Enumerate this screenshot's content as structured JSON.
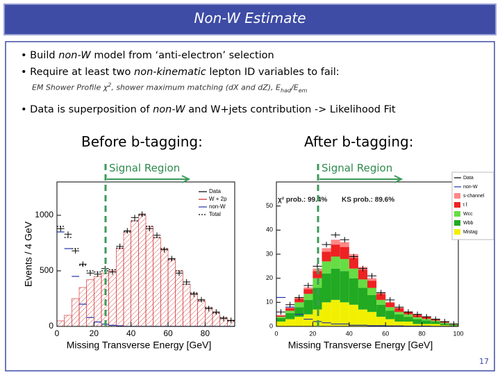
{
  "header": {
    "title": "Non-W Estimate"
  },
  "bullets": [
    [
      "Build ",
      "non-W",
      " model from ‘anti-electron’ selection"
    ],
    [
      "Require at least two ",
      "non-kinematic",
      " lepton ID variables to fail:"
    ],
    [
      "Data is superposition of ",
      "non-W",
      " and W+jets contribution -> Likelihood Fit"
    ]
  ],
  "sub_bullet": [
    "EM Shower Profile ",
    "χ",
    "2",
    ", shower maximum matching (dX and dZ), E",
    "had",
    "/E",
    "em"
  ],
  "panels": [
    {
      "heading": "Before b-tagging:",
      "region": "Signal Region"
    },
    {
      "heading": "After b-tagging:",
      "region": "Signal Region"
    }
  ],
  "page_number": "17",
  "chart_data": [
    {
      "type": "histogram",
      "xlabel": "Missing Transverse Energy [GeV]",
      "ylabel": "Events / 4 GeV",
      "bins": [
        0,
        4,
        8,
        12,
        16,
        20,
        24,
        28,
        32,
        36,
        40,
        44,
        48,
        52,
        56,
        60,
        64,
        68,
        72,
        76,
        80,
        84,
        88,
        92,
        96
      ],
      "xlim": [
        0,
        96
      ],
      "xticks": [
        0,
        20,
        40,
        60,
        80
      ],
      "ylim": [
        0,
        1300
      ],
      "yticks": [
        0,
        500,
        1000
      ],
      "legend": "upper right",
      "series": [
        {
          "name": "Data",
          "color": "#000000",
          "mark": "points",
          "values": [
            880,
            830,
            680,
            560,
            480,
            470,
            520,
            490,
            720,
            860,
            980,
            1010,
            880,
            820,
            690,
            610,
            480,
            400,
            290,
            240,
            160,
            130,
            70,
            55
          ]
        },
        {
          "name": "W + 2p",
          "color": "#cc2222",
          "mark": "hatch",
          "values": [
            50,
            100,
            250,
            350,
            420,
            450,
            480,
            500,
            700,
            850,
            950,
            1000,
            900,
            800,
            700,
            600,
            500,
            380,
            300,
            230,
            170,
            120,
            80,
            50
          ]
        },
        {
          "name": "non-W",
          "color": "#2233aa",
          "mark": "step",
          "values": [
            850,
            700,
            450,
            200,
            80,
            40,
            20,
            10,
            5,
            0,
            0,
            0,
            0,
            0,
            0,
            0,
            0,
            0,
            0,
            0,
            0,
            0,
            0,
            0
          ]
        },
        {
          "name": "Total",
          "color": "#000000",
          "mark": "dotted",
          "values": [
            900,
            800,
            700,
            550,
            500,
            490,
            500,
            510,
            705,
            850,
            950,
            1000,
            900,
            800,
            700,
            600,
            500,
            380,
            300,
            230,
            170,
            120,
            80,
            50
          ]
        }
      ]
    },
    {
      "type": "histogram",
      "xlabel": "Missing Transverse Energy [GeV]",
      "bins": [
        0,
        5,
        10,
        15,
        20,
        25,
        30,
        35,
        40,
        45,
        50,
        55,
        60,
        65,
        70,
        75,
        80,
        85,
        90,
        95,
        100
      ],
      "xlim": [
        0,
        100
      ],
      "xticks": [
        0,
        20,
        40,
        60,
        80,
        100
      ],
      "ylim": [
        0,
        60
      ],
      "yticks": [
        0,
        10,
        20,
        30,
        40,
        50
      ],
      "legend": "outside right",
      "annotations": [
        "χ² prob.: 99.4%",
        "KS prob.: 89.6%"
      ],
      "series": [
        {
          "name": "Data",
          "color": "#000000",
          "mark": "points",
          "values": [
            6,
            9,
            12,
            17,
            25,
            34,
            38,
            36,
            29,
            24,
            21,
            14,
            11,
            8,
            6,
            5,
            4,
            3,
            2,
            1
          ]
        },
        {
          "name": "non-W",
          "color": "#2233aa",
          "mark": "step",
          "values": [
            12,
            8,
            5,
            3,
            2,
            1.5,
            1,
            1,
            0.5,
            0.5,
            0.3,
            0.3,
            0.2,
            0.2,
            0.1,
            0.1,
            0.1,
            0,
            0,
            0
          ]
        },
        {
          "name": "s-channel",
          "color": "#ff8888",
          "mark": "fill",
          "stack": true,
          "values": [
            0.2,
            0.3,
            0.5,
            0.7,
            1,
            1.5,
            2,
            2,
            1.5,
            1.2,
            1,
            0.6,
            0.4,
            0.3,
            0.2,
            0.2,
            0.1,
            0.1,
            0.1,
            0.1
          ]
        },
        {
          "name": "t t̄",
          "color": "#ee2222",
          "mark": "fill",
          "stack": true,
          "values": [
            0.5,
            1,
            1.5,
            2,
            3,
            4,
            5,
            5,
            4.5,
            4,
            3,
            2.5,
            1.8,
            1.5,
            1,
            1,
            0.8,
            0.5,
            0.4,
            0.2
          ]
        },
        {
          "name": "Wcc",
          "color": "#66dd44",
          "mark": "fill",
          "stack": true,
          "values": [
            0.5,
            1,
            2,
            2.5,
            4,
            5,
            5,
            5,
            4,
            3.5,
            3,
            2,
            1.5,
            1,
            1,
            0.8,
            0.6,
            0.4,
            0.3,
            0.2
          ]
        },
        {
          "name": "Wbb",
          "color": "#22aa22",
          "mark": "fill",
          "stack": true,
          "values": [
            1.5,
            2.5,
            4,
            6,
            9,
            12,
            13,
            13,
            11,
            9,
            7,
            5,
            3.5,
            3,
            2,
            2,
            1.5,
            1,
            0.7,
            0.3
          ]
        },
        {
          "name": "Mistag",
          "color": "#f2f000",
          "mark": "fill",
          "stack": true,
          "values": [
            2,
            3,
            4,
            5,
            7,
            10,
            11,
            10,
            9,
            7,
            6,
            4,
            3,
            2,
            2,
            1,
            1,
            1,
            0.5,
            0.3
          ]
        }
      ]
    }
  ]
}
